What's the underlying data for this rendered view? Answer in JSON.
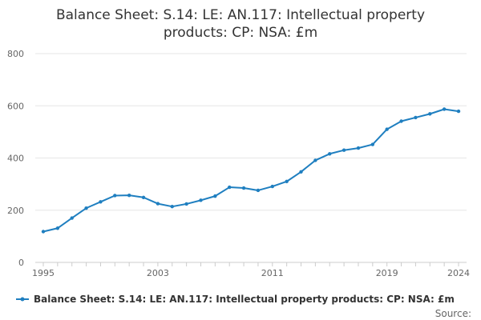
{
  "chart_data": {
    "type": "line",
    "title_lines": [
      "Balance Sheet: S.14: LE: AN.117: Intellectual property",
      "products: CP: NSA: £m"
    ],
    "x": [
      1995,
      1996,
      1997,
      1998,
      1999,
      2000,
      2001,
      2002,
      2003,
      2004,
      2005,
      2006,
      2007,
      2008,
      2009,
      2010,
      2011,
      2012,
      2013,
      2014,
      2015,
      2016,
      2017,
      2018,
      2019,
      2020,
      2021,
      2022,
      2023,
      2024
    ],
    "series": [
      {
        "name": "Balance Sheet: S.14: LE: AN.117: Intellectual property products: CP: NSA: £m",
        "color": "#1f7fc0",
        "values": [
          118,
          131,
          170,
          208,
          232,
          256,
          257,
          249,
          225,
          214,
          224,
          238,
          254,
          288,
          285,
          276,
          291,
          310,
          347,
          391,
          416,
          430,
          438,
          452,
          510,
          541,
          555,
          569,
          587,
          579
        ]
      }
    ],
    "ylim": [
      0,
      800
    ],
    "y_ticks": [
      0,
      200,
      400,
      600,
      800
    ],
    "x_tick_labels": [
      1995,
      2003,
      2011,
      2019,
      2024
    ],
    "legend_position": "bottom",
    "source_label": "Source:",
    "grid": true
  }
}
